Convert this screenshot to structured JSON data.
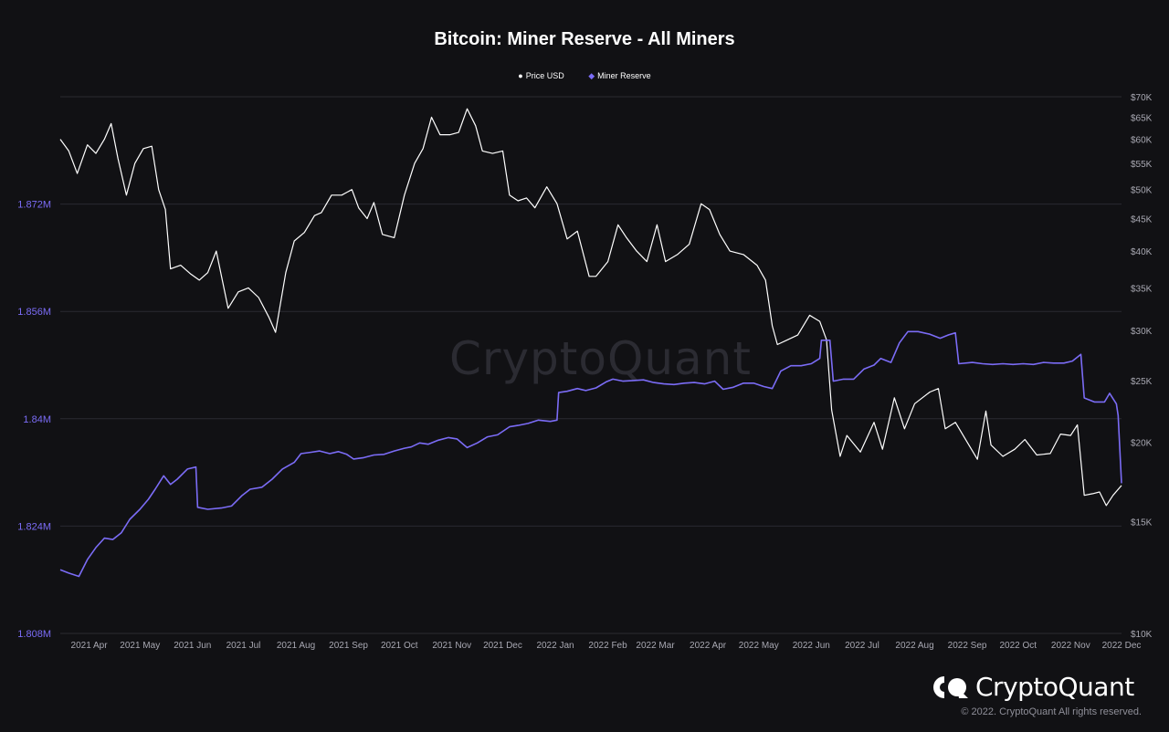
{
  "colors": {
    "background": "#111114",
    "price": "#ffffff",
    "reserve": "#7b6cf6",
    "grid": "#2a2a31",
    "left_axis": "#7b6cf6",
    "right_axis": "#a8a8b2"
  },
  "brand": {
    "name": "CryptoQuant",
    "watermark": "CryptoQuant",
    "copyright": "© 2022. CryptoQuant All rights reserved.",
    "logo_icon": "cryptoquant-logo-icon"
  },
  "chart_data": {
    "type": "line",
    "title": "Bitcoin: Miner Reserve - All Miners",
    "legend_position": "top-center",
    "grid": true,
    "x_tick_labels": [
      "2021 Apr",
      "2021 May",
      "2021 Jun",
      "2021 Jul",
      "2021 Aug",
      "2021 Sep",
      "2021 Oct",
      "2021 Nov",
      "2021 Dec",
      "2022 Jan",
      "2022 Feb",
      "2022 Mar",
      "2022 Apr",
      "2022 May",
      "2022 Jun",
      "2022 Jul",
      "2022 Aug",
      "2022 Sep",
      "2022 Oct",
      "2022 Nov",
      "2022 Dec"
    ],
    "x_range": [
      "2021-03-15",
      "2022-12-01"
    ],
    "y_left": {
      "ticks": [
        1808000,
        1824000,
        1840000,
        1856000,
        1872000
      ],
      "tick_labels": [
        "1.808M",
        "1.824M",
        "1.84M",
        "1.856M",
        "1.872M"
      ],
      "range": [
        1808000,
        1888000
      ]
    },
    "y_right": {
      "scale": "log",
      "ticks": [
        10000,
        15000,
        20000,
        25000,
        30000,
        35000,
        40000,
        45000,
        50000,
        55000,
        60000,
        65000,
        70000
      ],
      "tick_labels": [
        "$10K",
        "$15K",
        "$20K",
        "$25K",
        "$30K",
        "$35K",
        "$40K",
        "$45K",
        "$50K",
        "$55K",
        "$60K",
        "$65K",
        "$70K"
      ],
      "range": [
        10000,
        70000
      ]
    },
    "series": [
      {
        "name": "Price USD",
        "axis": "right",
        "points": [
          [
            "2021-03-15",
            60000
          ],
          [
            "2021-03-20",
            57500
          ],
          [
            "2021-03-25",
            53000
          ],
          [
            "2021-03-31",
            58800
          ],
          [
            "2021-04-05",
            57000
          ],
          [
            "2021-04-10",
            60000
          ],
          [
            "2021-04-14",
            63500
          ],
          [
            "2021-04-18",
            56000
          ],
          [
            "2021-04-23",
            49000
          ],
          [
            "2021-04-28",
            55000
          ],
          [
            "2021-05-03",
            58000
          ],
          [
            "2021-05-08",
            58500
          ],
          [
            "2021-05-12",
            50000
          ],
          [
            "2021-05-16",
            46500
          ],
          [
            "2021-05-19",
            37500
          ],
          [
            "2021-05-25",
            38000
          ],
          [
            "2021-05-31",
            36800
          ],
          [
            "2021-06-05",
            36000
          ],
          [
            "2021-06-10",
            37000
          ],
          [
            "2021-06-15",
            40000
          ],
          [
            "2021-06-22",
            32500
          ],
          [
            "2021-06-28",
            34500
          ],
          [
            "2021-07-04",
            35000
          ],
          [
            "2021-07-10",
            33800
          ],
          [
            "2021-07-16",
            31500
          ],
          [
            "2021-07-20",
            29800
          ],
          [
            "2021-07-26",
            37000
          ],
          [
            "2021-07-31",
            41500
          ],
          [
            "2021-08-06",
            42800
          ],
          [
            "2021-08-12",
            45500
          ],
          [
            "2021-08-16",
            46000
          ],
          [
            "2021-08-22",
            49000
          ],
          [
            "2021-08-28",
            49000
          ],
          [
            "2021-09-03",
            50000
          ],
          [
            "2021-09-07",
            46800
          ],
          [
            "2021-09-12",
            45000
          ],
          [
            "2021-09-16",
            47700
          ],
          [
            "2021-09-21",
            42500
          ],
          [
            "2021-09-28",
            42000
          ],
          [
            "2021-10-04",
            49000
          ],
          [
            "2021-10-10",
            55000
          ],
          [
            "2021-10-15",
            58000
          ],
          [
            "2021-10-20",
            65000
          ],
          [
            "2021-10-25",
            61000
          ],
          [
            "2021-10-31",
            61000
          ],
          [
            "2021-11-05",
            61500
          ],
          [
            "2021-11-10",
            67000
          ],
          [
            "2021-11-15",
            63000
          ],
          [
            "2021-11-19",
            57500
          ],
          [
            "2021-11-25",
            57000
          ],
          [
            "2021-12-01",
            57500
          ],
          [
            "2021-12-05",
            49000
          ],
          [
            "2021-12-10",
            48000
          ],
          [
            "2021-12-15",
            48500
          ],
          [
            "2021-12-20",
            46800
          ],
          [
            "2021-12-27",
            50500
          ],
          [
            "2022-01-02",
            47500
          ],
          [
            "2022-01-08",
            41800
          ],
          [
            "2022-01-14",
            43000
          ],
          [
            "2022-01-21",
            36500
          ],
          [
            "2022-01-25",
            36500
          ],
          [
            "2022-02-01",
            38500
          ],
          [
            "2022-02-07",
            44000
          ],
          [
            "2022-02-12",
            42000
          ],
          [
            "2022-02-18",
            40000
          ],
          [
            "2022-02-24",
            38500
          ],
          [
            "2022-03-02",
            44000
          ],
          [
            "2022-03-07",
            38500
          ],
          [
            "2022-03-14",
            39500
          ],
          [
            "2022-03-21",
            41000
          ],
          [
            "2022-03-28",
            47500
          ],
          [
            "2022-04-02",
            46500
          ],
          [
            "2022-04-08",
            42500
          ],
          [
            "2022-04-14",
            40000
          ],
          [
            "2022-04-22",
            39500
          ],
          [
            "2022-04-30",
            38000
          ],
          [
            "2022-05-05",
            36000
          ],
          [
            "2022-05-09",
            30500
          ],
          [
            "2022-05-12",
            28500
          ],
          [
            "2022-05-18",
            29000
          ],
          [
            "2022-05-24",
            29500
          ],
          [
            "2022-05-31",
            31700
          ],
          [
            "2022-06-06",
            31000
          ],
          [
            "2022-06-10",
            29000
          ],
          [
            "2022-06-13",
            22500
          ],
          [
            "2022-06-18",
            19000
          ],
          [
            "2022-06-22",
            20500
          ],
          [
            "2022-06-30",
            19300
          ],
          [
            "2022-07-08",
            21500
          ],
          [
            "2022-07-13",
            19500
          ],
          [
            "2022-07-20",
            23500
          ],
          [
            "2022-07-26",
            21000
          ],
          [
            "2022-08-01",
            23000
          ],
          [
            "2022-08-10",
            24000
          ],
          [
            "2022-08-15",
            24300
          ],
          [
            "2022-08-19",
            21000
          ],
          [
            "2022-08-25",
            21500
          ],
          [
            "2022-09-01",
            20000
          ],
          [
            "2022-09-07",
            18800
          ],
          [
            "2022-09-12",
            22400
          ],
          [
            "2022-09-15",
            19800
          ],
          [
            "2022-09-22",
            19000
          ],
          [
            "2022-09-29",
            19500
          ],
          [
            "2022-10-05",
            20200
          ],
          [
            "2022-10-12",
            19100
          ],
          [
            "2022-10-20",
            19200
          ],
          [
            "2022-10-26",
            20600
          ],
          [
            "2022-11-01",
            20500
          ],
          [
            "2022-11-05",
            21300
          ],
          [
            "2022-11-09",
            16500
          ],
          [
            "2022-11-14",
            16600
          ],
          [
            "2022-11-18",
            16700
          ],
          [
            "2022-11-22",
            15900
          ],
          [
            "2022-11-26",
            16500
          ],
          [
            "2022-12-01",
            17100
          ]
        ]
      },
      {
        "name": "Miner Reserve",
        "axis": "left",
        "points": [
          [
            "2021-03-15",
            1817500
          ],
          [
            "2021-03-20",
            1817000
          ],
          [
            "2021-03-26",
            1816500
          ],
          [
            "2021-03-31",
            1819000
          ],
          [
            "2021-04-05",
            1820800
          ],
          [
            "2021-04-10",
            1822200
          ],
          [
            "2021-04-15",
            1822000
          ],
          [
            "2021-04-20",
            1823000
          ],
          [
            "2021-04-25",
            1825000
          ],
          [
            "2021-05-01",
            1826500
          ],
          [
            "2021-05-06",
            1828000
          ],
          [
            "2021-05-10",
            1829500
          ],
          [
            "2021-05-15",
            1831500
          ],
          [
            "2021-05-19",
            1830200
          ],
          [
            "2021-05-23",
            1831000
          ],
          [
            "2021-05-29",
            1832500
          ],
          [
            "2021-06-03",
            1832800
          ],
          [
            "2021-06-04",
            1826800
          ],
          [
            "2021-06-10",
            1826500
          ],
          [
            "2021-06-18",
            1826700
          ],
          [
            "2021-06-24",
            1827000
          ],
          [
            "2021-06-30",
            1828500
          ],
          [
            "2021-07-05",
            1829500
          ],
          [
            "2021-07-12",
            1829800
          ],
          [
            "2021-07-18",
            1831000
          ],
          [
            "2021-07-24",
            1832500
          ],
          [
            "2021-07-31",
            1833500
          ],
          [
            "2021-08-04",
            1834800
          ],
          [
            "2021-08-10",
            1835000
          ],
          [
            "2021-08-15",
            1835200
          ],
          [
            "2021-08-21",
            1834800
          ],
          [
            "2021-08-26",
            1835100
          ],
          [
            "2021-08-31",
            1834700
          ],
          [
            "2021-09-04",
            1834000
          ],
          [
            "2021-09-10",
            1834200
          ],
          [
            "2021-09-16",
            1834600
          ],
          [
            "2021-09-22",
            1834700
          ],
          [
            "2021-09-28",
            1835200
          ],
          [
            "2021-10-04",
            1835600
          ],
          [
            "2021-10-08",
            1835800
          ],
          [
            "2021-10-13",
            1836400
          ],
          [
            "2021-10-18",
            1836200
          ],
          [
            "2021-10-24",
            1836800
          ],
          [
            "2021-10-30",
            1837200
          ],
          [
            "2021-11-04",
            1837000
          ],
          [
            "2021-11-10",
            1835700
          ],
          [
            "2021-11-16",
            1836400
          ],
          [
            "2021-11-22",
            1837300
          ],
          [
            "2021-11-28",
            1837600
          ],
          [
            "2021-12-05",
            1838800
          ],
          [
            "2021-12-10",
            1839000
          ],
          [
            "2021-12-16",
            1839300
          ],
          [
            "2021-12-22",
            1839800
          ],
          [
            "2021-12-29",
            1839600
          ],
          [
            "2022-01-02",
            1839800
          ],
          [
            "2022-01-03",
            1843900
          ],
          [
            "2022-01-08",
            1844100
          ],
          [
            "2022-01-14",
            1844500
          ],
          [
            "2022-01-19",
            1844200
          ],
          [
            "2022-01-25",
            1844600
          ],
          [
            "2022-01-31",
            1845500
          ],
          [
            "2022-02-04",
            1845900
          ],
          [
            "2022-02-10",
            1845600
          ],
          [
            "2022-02-16",
            1845700
          ],
          [
            "2022-02-22",
            1845800
          ],
          [
            "2022-02-28",
            1845400
          ],
          [
            "2022-03-06",
            1845200
          ],
          [
            "2022-03-12",
            1845100
          ],
          [
            "2022-03-18",
            1845300
          ],
          [
            "2022-03-24",
            1845400
          ],
          [
            "2022-03-30",
            1845200
          ],
          [
            "2022-04-05",
            1845600
          ],
          [
            "2022-04-10",
            1844400
          ],
          [
            "2022-04-16",
            1844700
          ],
          [
            "2022-04-22",
            1845300
          ],
          [
            "2022-04-28",
            1845300
          ],
          [
            "2022-05-04",
            1844800
          ],
          [
            "2022-05-09",
            1844500
          ],
          [
            "2022-05-14",
            1847100
          ],
          [
            "2022-05-20",
            1847900
          ],
          [
            "2022-05-26",
            1847900
          ],
          [
            "2022-06-01",
            1848200
          ],
          [
            "2022-06-06",
            1849000
          ],
          [
            "2022-06-07",
            1851700
          ],
          [
            "2022-06-12",
            1851700
          ],
          [
            "2022-06-14",
            1845600
          ],
          [
            "2022-06-20",
            1845900
          ],
          [
            "2022-06-26",
            1845900
          ],
          [
            "2022-07-02",
            1847400
          ],
          [
            "2022-07-08",
            1848000
          ],
          [
            "2022-07-12",
            1849000
          ],
          [
            "2022-07-18",
            1848400
          ],
          [
            "2022-07-23",
            1851300
          ],
          [
            "2022-07-28",
            1853000
          ],
          [
            "2022-08-03",
            1853000
          ],
          [
            "2022-08-10",
            1852600
          ],
          [
            "2022-08-16",
            1852000
          ],
          [
            "2022-08-21",
            1852500
          ],
          [
            "2022-08-25",
            1852800
          ],
          [
            "2022-08-27",
            1848200
          ],
          [
            "2022-09-04",
            1848400
          ],
          [
            "2022-09-10",
            1848200
          ],
          [
            "2022-09-16",
            1848100
          ],
          [
            "2022-09-22",
            1848200
          ],
          [
            "2022-09-28",
            1848100
          ],
          [
            "2022-10-04",
            1848200
          ],
          [
            "2022-10-10",
            1848100
          ],
          [
            "2022-10-16",
            1848400
          ],
          [
            "2022-10-22",
            1848300
          ],
          [
            "2022-10-28",
            1848300
          ],
          [
            "2022-11-02",
            1848600
          ],
          [
            "2022-11-07",
            1849600
          ],
          [
            "2022-11-09",
            1843100
          ],
          [
            "2022-11-15",
            1842500
          ],
          [
            "2022-11-21",
            1842500
          ],
          [
            "2022-11-24",
            1843800
          ],
          [
            "2022-11-28",
            1842200
          ],
          [
            "2022-11-29",
            1840500
          ],
          [
            "2022-12-01",
            1830400
          ]
        ]
      }
    ]
  }
}
